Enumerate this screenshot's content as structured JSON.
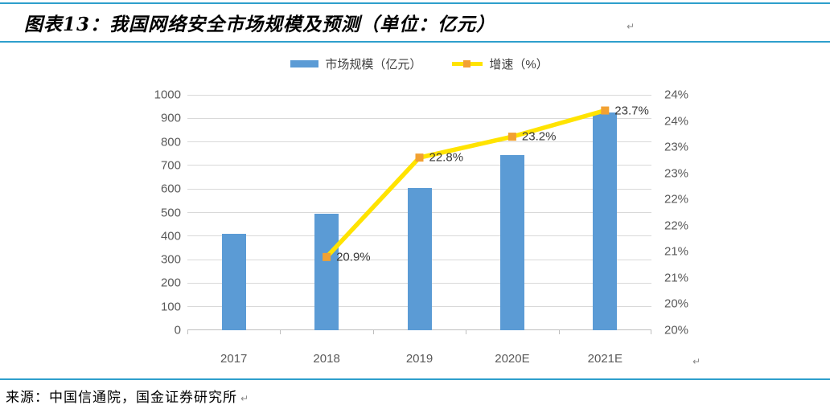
{
  "header": {
    "title": "图表13：我国网络安全市场规模及预测（单位：亿元）",
    "paragraph_mark": "↵"
  },
  "footer": {
    "source": "来源：中国信通院，国金证券研究所",
    "paragraph_mark": "↵",
    "chart_end_mark": "↵"
  },
  "chart_data": {
    "type": "bar",
    "subtype": "bar-line-combo",
    "title": "我国网络安全市场规模及预测（单位：亿元）",
    "categories": [
      "2017",
      "2018",
      "2019",
      "2020E",
      "2021E"
    ],
    "series": [
      {
        "name": "市场规模（亿元）",
        "type": "bar",
        "axis": "left",
        "color": "#5b9bd5",
        "values": [
          410,
          495,
          605,
          745,
          925
        ]
      },
      {
        "name": "增速（%）",
        "type": "line",
        "axis": "right",
        "color": "#ffe300",
        "marker_color": "#f2a132",
        "values": [
          null,
          20.9,
          22.8,
          23.2,
          23.7
        ],
        "point_labels": [
          null,
          "20.9%",
          "22.8%",
          "23.2%",
          "23.7%"
        ]
      }
    ],
    "left_axis": {
      "min": 0,
      "max": 1000,
      "step": 100,
      "tick_labels": [
        "0",
        "100",
        "200",
        "300",
        "400",
        "500",
        "600",
        "700",
        "800",
        "900",
        "1000"
      ]
    },
    "right_axis": {
      "min": 19.5,
      "max": 24,
      "step": 0.5,
      "tick_labels": [
        "20%",
        "20%",
        "21%",
        "21%",
        "22%",
        "22%",
        "23%",
        "23%",
        "24%",
        "24%"
      ]
    },
    "grid": true,
    "legend_position": "top-center"
  },
  "colors": {
    "rule_blue": "#2e9fcc",
    "bar_blue": "#5b9bd5",
    "line_yellow": "#ffe300",
    "marker_orange": "#f2a132",
    "gridline": "#d9d9d9",
    "axis_line": "#bfbfbf",
    "axis_text": "#595959"
  }
}
